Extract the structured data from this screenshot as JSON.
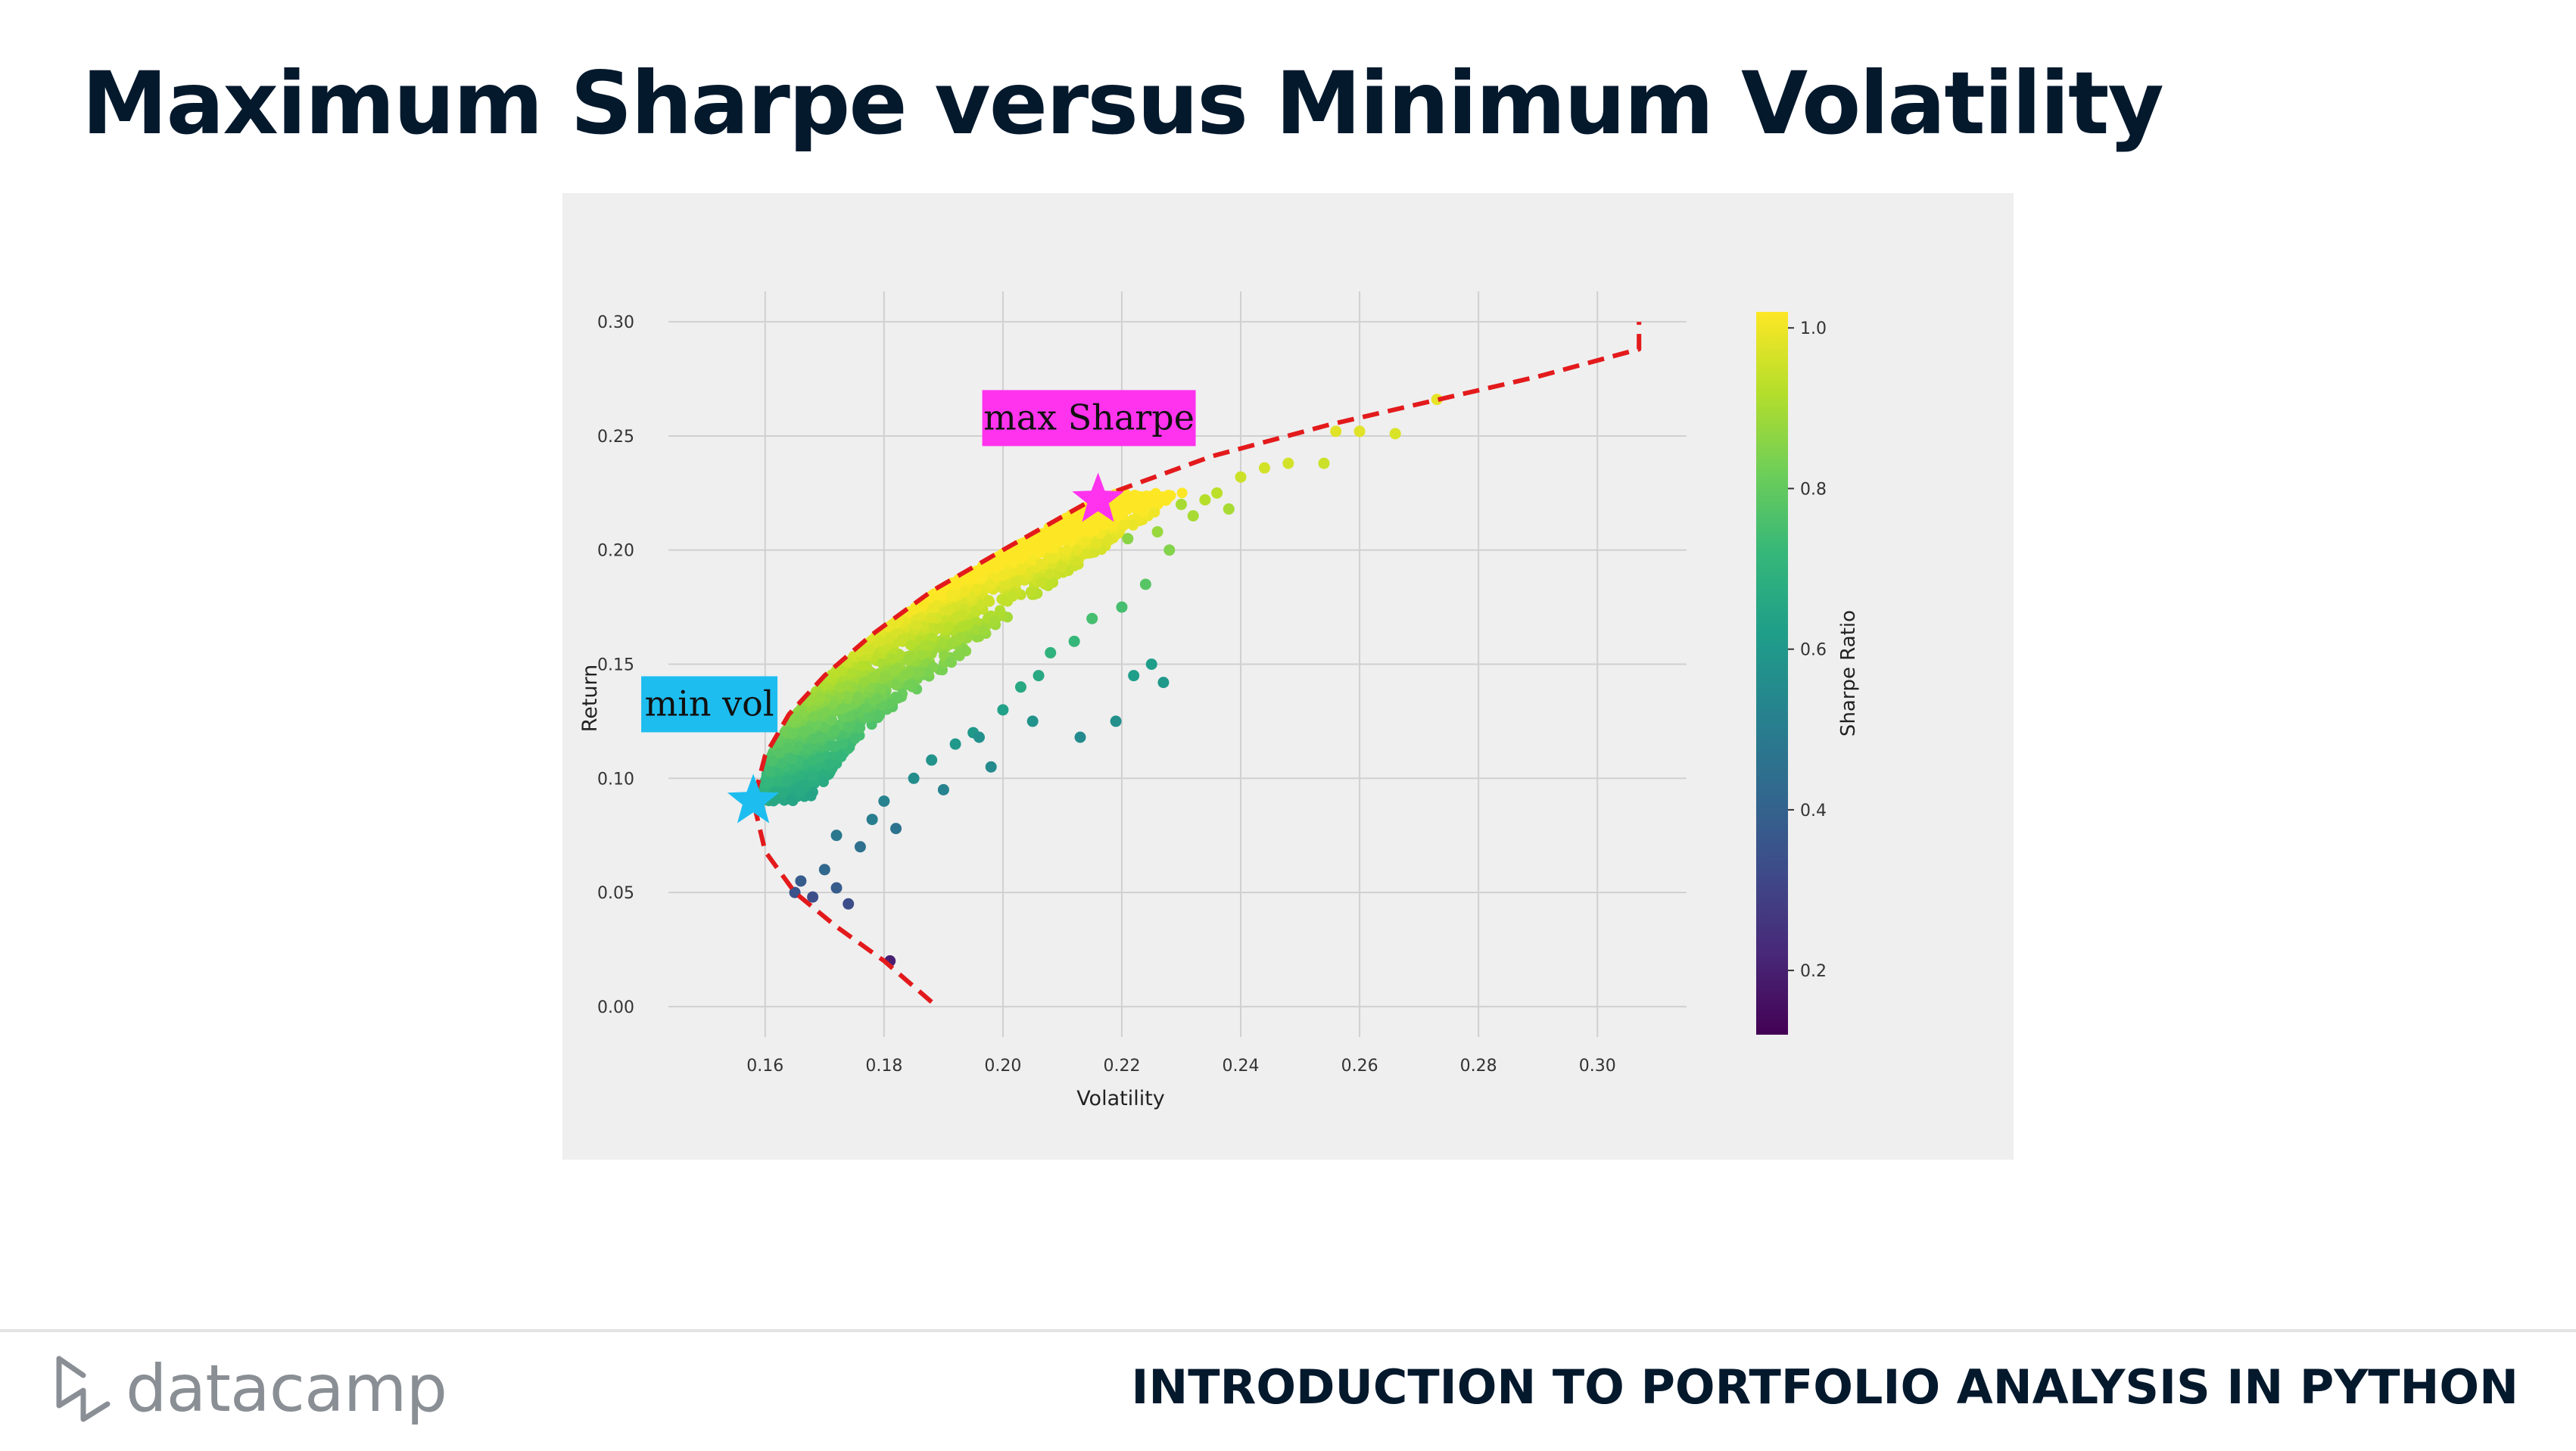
{
  "slide": {
    "title": "Maximum Sharpe versus Minimum Volatility",
    "course": "INTRODUCTION TO PORTFOLIO ANALYSIS IN PYTHON",
    "logo_text": "datacamp",
    "logo_icon": "datacamp-logo-icon"
  },
  "chart_data": {
    "type": "scatter",
    "xlabel": "Volatility",
    "ylabel": "Return",
    "xlim": [
      0.145,
      0.315
    ],
    "ylim": [
      -0.01,
      0.31
    ],
    "xticks": [
      "0.16",
      "0.18",
      "0.20",
      "0.22",
      "0.24",
      "0.26",
      "0.28",
      "0.30"
    ],
    "yticks": [
      "0.00",
      "0.05",
      "0.10",
      "0.15",
      "0.20",
      "0.25",
      "0.30"
    ],
    "grid": true,
    "colorbar": {
      "label": "Sharpe Ratio",
      "range": [
        0.12,
        1.02
      ],
      "ticks": [
        "0.2",
        "0.4",
        "0.6",
        "0.8",
        "1.0"
      ],
      "colormap": "viridis"
    },
    "frontier": {
      "style": "dashed",
      "color": "#e31a1c",
      "points": [
        [
          0.188,
          0.002
        ],
        [
          0.18,
          0.02
        ],
        [
          0.172,
          0.035
        ],
        [
          0.165,
          0.05
        ],
        [
          0.16,
          0.068
        ],
        [
          0.158,
          0.09
        ],
        [
          0.16,
          0.11
        ],
        [
          0.164,
          0.128
        ],
        [
          0.17,
          0.145
        ],
        [
          0.178,
          0.163
        ],
        [
          0.188,
          0.182
        ],
        [
          0.2,
          0.2
        ],
        [
          0.215,
          0.222
        ],
        [
          0.235,
          0.241
        ],
        [
          0.255,
          0.255
        ],
        [
          0.275,
          0.267
        ],
        [
          0.29,
          0.276
        ],
        [
          0.307,
          0.288
        ],
        [
          0.307,
          0.3
        ]
      ]
    },
    "scatter_points": [
      [
        0.181,
        0.02,
        0.2
      ],
      [
        0.165,
        0.05,
        0.35
      ],
      [
        0.166,
        0.055,
        0.38
      ],
      [
        0.168,
        0.048,
        0.33
      ],
      [
        0.17,
        0.06,
        0.42
      ],
      [
        0.172,
        0.052,
        0.38
      ],
      [
        0.174,
        0.045,
        0.33
      ],
      [
        0.176,
        0.07,
        0.45
      ],
      [
        0.172,
        0.075,
        0.48
      ],
      [
        0.178,
        0.082,
        0.5
      ],
      [
        0.18,
        0.09,
        0.52
      ],
      [
        0.182,
        0.078,
        0.46
      ],
      [
        0.185,
        0.1,
        0.56
      ],
      [
        0.188,
        0.108,
        0.58
      ],
      [
        0.19,
        0.095,
        0.52
      ],
      [
        0.192,
        0.115,
        0.6
      ],
      [
        0.195,
        0.12,
        0.6
      ],
      [
        0.198,
        0.105,
        0.55
      ],
      [
        0.2,
        0.13,
        0.63
      ],
      [
        0.203,
        0.14,
        0.66
      ],
      [
        0.206,
        0.145,
        0.66
      ],
      [
        0.208,
        0.155,
        0.7
      ],
      [
        0.212,
        0.16,
        0.72
      ],
      [
        0.215,
        0.17,
        0.75
      ],
      [
        0.22,
        0.175,
        0.75
      ],
      [
        0.222,
        0.145,
        0.62
      ],
      [
        0.225,
        0.15,
        0.62
      ],
      [
        0.227,
        0.142,
        0.6
      ],
      [
        0.219,
        0.125,
        0.57
      ],
      [
        0.213,
        0.118,
        0.55
      ],
      [
        0.205,
        0.125,
        0.58
      ],
      [
        0.196,
        0.118,
        0.57
      ],
      [
        0.224,
        0.185,
        0.78
      ],
      [
        0.228,
        0.2,
        0.85
      ],
      [
        0.232,
        0.215,
        0.9
      ],
      [
        0.236,
        0.225,
        0.93
      ],
      [
        0.24,
        0.232,
        0.95
      ],
      [
        0.244,
        0.236,
        0.96
      ],
      [
        0.248,
        0.238,
        0.96
      ],
      [
        0.254,
        0.238,
        0.95
      ],
      [
        0.256,
        0.252,
        0.98
      ],
      [
        0.26,
        0.252,
        0.98
      ],
      [
        0.266,
        0.251,
        0.97
      ],
      [
        0.273,
        0.266,
        0.99
      ],
      [
        0.234,
        0.222,
        0.92
      ],
      [
        0.238,
        0.218,
        0.9
      ],
      [
        0.23,
        0.22,
        0.9
      ],
      [
        0.226,
        0.208,
        0.88
      ],
      [
        0.221,
        0.205,
        0.86
      ]
    ],
    "annotations": [
      {
        "label": "max Sharpe",
        "x": 0.216,
        "y": 0.222,
        "marker": "star",
        "color": "#ff33ee"
      },
      {
        "label": "min vol",
        "x": 0.158,
        "y": 0.09,
        "marker": "star",
        "color": "#1ebdf0"
      }
    ]
  }
}
